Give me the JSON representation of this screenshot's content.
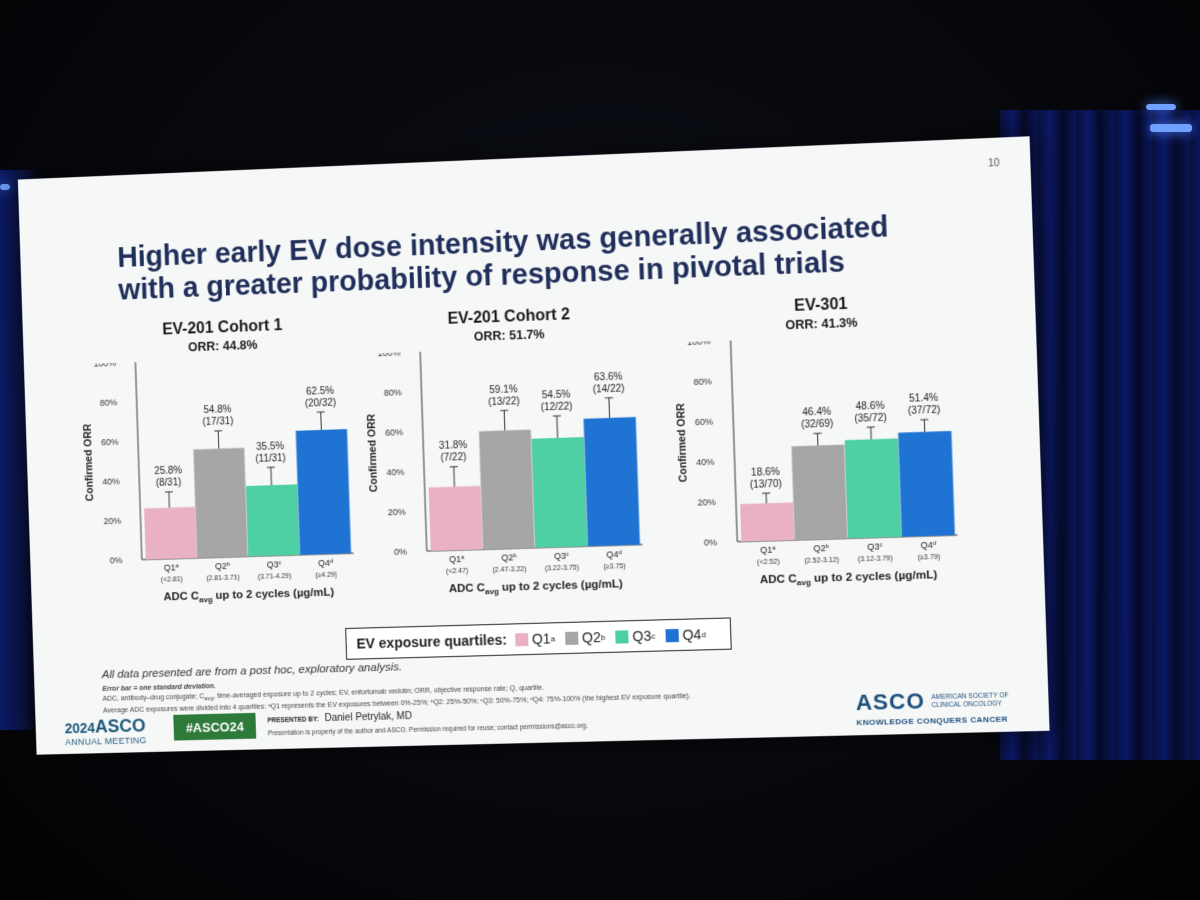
{
  "slide_number": "10",
  "title_line1": "Higher early EV dose intensity was generally associated",
  "title_line2": "with a greater probability of response in pivotal trials",
  "colors": {
    "q1": "#e9b1c2",
    "q2": "#a6a6a6",
    "q3": "#4fd0a4",
    "q4": "#1e73d3"
  },
  "legend": {
    "title": "EV exposure quartiles:",
    "items": [
      {
        "label": "Q1",
        "sup": "a",
        "color": "#e9b1c2"
      },
      {
        "label": "Q2",
        "sup": "b",
        "color": "#a6a6a6"
      },
      {
        "label": "Q3",
        "sup": "c",
        "color": "#4fd0a4"
      },
      {
        "label": "Q4",
        "sup": "d",
        "color": "#1e73d3"
      }
    ]
  },
  "chart_data": [
    {
      "type": "bar",
      "title": "EV-201 Cohort 1",
      "subtitle": "ORR: 44.8%",
      "ylabel": "Confirmed ORR",
      "xlabel_pre": "ADC C",
      "xlabel_sub": "avg",
      "xlabel_post": " up to 2 cycles (µg/mL)",
      "ylim": [
        0,
        100
      ],
      "yticks": [
        "0%",
        "20%",
        "40%",
        "60%",
        "80%",
        "100%"
      ],
      "categories": [
        "Q1",
        "Q2",
        "Q3",
        "Q4"
      ],
      "cat_sups": [
        "a",
        "b",
        "c",
        "d"
      ],
      "ranges": [
        "(<2.81)",
        "(2.81-3.71)",
        "(3.71-4.29)",
        "(≥4.29)"
      ],
      "values": [
        25.8,
        54.8,
        35.5,
        62.5
      ],
      "value_labels": [
        "25.8%",
        "54.8%",
        "35.5%",
        "62.5%"
      ],
      "counts": [
        "(8/31)",
        "(17/31)",
        "(11/31)",
        "(20/32)"
      ],
      "error": [
        8,
        9,
        9,
        9
      ]
    },
    {
      "type": "bar",
      "title": "EV-201 Cohort 2",
      "subtitle": "ORR: 51.7%",
      "ylabel": "Confirmed ORR",
      "xlabel_pre": "ADC C",
      "xlabel_sub": "avg",
      "xlabel_post": " up to 2 cycles (µg/mL)",
      "ylim": [
        0,
        100
      ],
      "yticks": [
        "0%",
        "20%",
        "40%",
        "60%",
        "80%",
        "100%"
      ],
      "categories": [
        "Q1",
        "Q2",
        "Q3",
        "Q4"
      ],
      "cat_sups": [
        "a",
        "b",
        "c",
        "d"
      ],
      "ranges": [
        "(<2.47)",
        "(2.47-3.22)",
        "(3.22-3.75)",
        "(≥3.75)"
      ],
      "values": [
        31.8,
        59.1,
        54.5,
        63.6
      ],
      "value_labels": [
        "31.8%",
        "59.1%",
        "54.5%",
        "63.6%"
      ],
      "counts": [
        "(7/22)",
        "(13/22)",
        "(12/22)",
        "(14/22)"
      ],
      "error": [
        10,
        10,
        11,
        10
      ]
    },
    {
      "type": "bar",
      "title": "EV-301",
      "subtitle": "ORR: 41.3%",
      "ylabel": "Confirmed ORR",
      "xlabel_pre": "ADC C",
      "xlabel_sub": "avg",
      "xlabel_post": " up to 2 cycles (µg/mL)",
      "ylim": [
        0,
        100
      ],
      "yticks": [
        "0%",
        "20%",
        "40%",
        "60%",
        "80%",
        "100%"
      ],
      "categories": [
        "Q1",
        "Q2",
        "Q3",
        "Q4"
      ],
      "cat_sups": [
        "a",
        "b",
        "c",
        "d"
      ],
      "ranges": [
        "(<2.52)",
        "(2.52-3.12)",
        "(3.12-3.79)",
        "(≥3.79)"
      ],
      "values": [
        18.6,
        46.4,
        48.6,
        51.4
      ],
      "value_labels": [
        "18.6%",
        "46.4%",
        "48.6%",
        "51.4%"
      ],
      "counts": [
        "(13/70)",
        "(32/69)",
        "(35/72)",
        "(37/72)"
      ],
      "error": [
        5,
        6,
        6,
        6
      ]
    }
  ],
  "note_main": "All data presented are from a post hoc, exploratory analysis.",
  "footnote_error": "Error bar = one standard deviation.",
  "footnote_abbrev_pre": "ADC, antibody–drug conjugate; C",
  "footnote_abbrev_sub": "avg",
  "footnote_abbrev_post": ", time-averaged exposure up to 2 cycles; EV, enfortumab vedotin; ORR, objective response rate; Q, quartile.",
  "footnote_quartiles": "Average ADC exposures were divided into 4 quartiles: ᵃQ1 represents the EV exposures between 0%-25%; ᵇQ2: 25%-50%; ᶜQ3: 50%-75%; ᵈQ4: 75%-100% (the highest EV exposure quartile).",
  "footer": {
    "year": "2024",
    "asco": "ASCO",
    "annual_meeting": "ANNUAL MEETING",
    "hashtag": "#ASCO24",
    "presented_label": "PRESENTED BY:",
    "presenter": "Daniel Petrylak, MD",
    "property": "Presentation is property of the author and ASCO. Permission required for reuse; contact permissions@asco.org.",
    "asco_logo": "ASCO",
    "society_line1": "AMERICAN SOCIETY OF",
    "society_line2": "CLINICAL ONCOLOGY",
    "tagline": "KNOWLEDGE CONQUERS CANCER"
  }
}
